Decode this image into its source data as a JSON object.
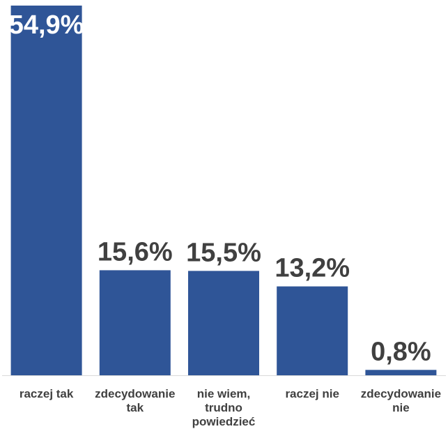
{
  "chart_data": {
    "type": "bar",
    "title": "",
    "xlabel": "",
    "ylabel": "",
    "ylim": [
      0,
      54.9
    ],
    "grid": false,
    "legend": "none",
    "bar_color": "#2f5597",
    "label_inside_color": "#ffffff",
    "label_outside_color": "#404040",
    "axis_color": "#d9d9d9",
    "categories": [
      [
        "raczej tak"
      ],
      [
        "zdecydowanie",
        "tak"
      ],
      [
        "nie wiem,",
        "trudno",
        "powiedzieć"
      ],
      [
        "raczej nie"
      ],
      [
        "zdecydowanie",
        "nie"
      ]
    ],
    "values": [
      54.9,
      15.6,
      15.5,
      13.2,
      0.8
    ],
    "value_labels": [
      "54,9%",
      "15,6%",
      "15,5%",
      "13,2%",
      "0,8%"
    ]
  }
}
